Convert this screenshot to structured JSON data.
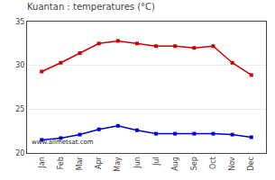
{
  "chart_data": {
    "type": "line",
    "title": "Kuantan : temperatures (°C)",
    "categories": [
      "Jan",
      "Feb",
      "Mar",
      "Apr",
      "May",
      "Jun",
      "Jul",
      "Aug",
      "Sep",
      "Oct",
      "Nov",
      "Dec"
    ],
    "series": [
      {
        "color": "#cc0000",
        "values": [
          29.3,
          30.3,
          31.4,
          32.5,
          32.8,
          32.5,
          32.2,
          32.2,
          32.0,
          32.2,
          30.3,
          28.9
        ]
      },
      {
        "color": "#0000cc",
        "values": [
          21.5,
          21.7,
          22.1,
          22.7,
          23.1,
          22.6,
          22.2,
          22.2,
          22.2,
          22.2,
          22.1,
          21.8
        ]
      }
    ],
    "ylim": [
      20,
      35
    ],
    "yticks": [
      20,
      25,
      30,
      35
    ],
    "grid": "y",
    "marker": "square",
    "line_style": "solid",
    "annotations": [
      "www.allmetsat.com"
    ]
  }
}
